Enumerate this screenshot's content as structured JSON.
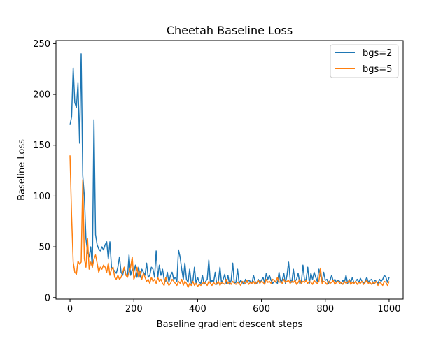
{
  "chart_data": {
    "type": "line",
    "title": "Cheetah Baseline Loss",
    "xlabel": "Baseline gradient descent steps",
    "ylabel": "Baseline Loss",
    "xlim": [
      -44,
      1044
    ],
    "ylim": [
      -1.5,
      253
    ],
    "xticks": [
      0,
      200,
      400,
      600,
      800,
      1000
    ],
    "yticks": [
      0,
      50,
      100,
      150,
      200,
      250
    ],
    "legend_position": "top-right",
    "grid": false,
    "series": [
      {
        "name": "bgs=2",
        "color": "#1f77b4",
        "x": [
          0,
          5,
          10,
          15,
          20,
          25,
          30,
          35,
          40,
          45,
          50,
          55,
          60,
          65,
          70,
          75,
          80,
          85,
          90,
          95,
          100,
          105,
          110,
          115,
          120,
          125,
          130,
          135,
          140,
          145,
          150,
          155,
          160,
          165,
          170,
          175,
          180,
          185,
          190,
          195,
          200,
          205,
          210,
          215,
          220,
          225,
          230,
          235,
          240,
          245,
          250,
          255,
          260,
          265,
          270,
          275,
          280,
          285,
          290,
          295,
          300,
          305,
          310,
          315,
          320,
          325,
          330,
          335,
          340,
          345,
          350,
          355,
          360,
          365,
          370,
          375,
          380,
          385,
          390,
          395,
          400,
          405,
          410,
          415,
          420,
          425,
          430,
          435,
          440,
          445,
          450,
          455,
          460,
          465,
          470,
          475,
          480,
          485,
          490,
          495,
          500,
          505,
          510,
          515,
          520,
          525,
          530,
          535,
          540,
          545,
          550,
          555,
          560,
          565,
          570,
          575,
          580,
          585,
          590,
          595,
          600,
          605,
          610,
          615,
          620,
          625,
          630,
          635,
          640,
          645,
          650,
          655,
          660,
          665,
          670,
          675,
          680,
          685,
          690,
          695,
          700,
          705,
          710,
          715,
          720,
          725,
          730,
          735,
          740,
          745,
          750,
          755,
          760,
          765,
          770,
          775,
          780,
          785,
          790,
          795,
          800,
          805,
          810,
          815,
          820,
          825,
          830,
          835,
          840,
          845,
          850,
          855,
          860,
          865,
          870,
          875,
          880,
          885,
          890,
          895,
          900,
          905,
          910,
          915,
          920,
          925,
          930,
          935,
          940,
          945,
          950,
          955,
          960,
          965,
          970,
          975,
          980,
          985,
          990,
          995,
          1000
        ],
        "y": [
          170,
          178,
          226,
          192,
          187,
          211,
          152,
          240,
          120,
          100,
          58,
          45,
          40,
          50,
          30,
          175,
          62,
          52,
          48,
          46,
          50,
          47,
          52,
          55,
          38,
          55,
          30,
          28,
          26,
          24,
          30,
          40,
          25,
          22,
          30,
          23,
          20,
          42,
          22,
          28,
          25,
          32,
          20,
          30,
          20,
          28,
          25,
          22,
          34,
          20,
          22,
          30,
          28,
          20,
          46,
          20,
          32,
          22,
          28,
          18,
          16,
          25,
          15,
          22,
          25,
          18,
          20,
          16,
          47,
          40,
          28,
          18,
          34,
          18,
          15,
          28,
          14,
          16,
          30,
          14,
          20,
          15,
          14,
          22,
          13,
          16,
          18,
          37,
          14,
          17,
          15,
          25,
          13,
          16,
          30,
          14,
          18,
          23,
          14,
          22,
          13,
          17,
          34,
          14,
          15,
          28,
          14,
          17,
          15,
          13,
          18,
          15,
          17,
          16,
          14,
          22,
          16,
          14,
          18,
          15,
          17,
          20,
          14,
          24,
          18,
          22,
          17,
          14,
          16,
          16,
          14,
          25,
          15,
          17,
          24,
          14,
          22,
          35,
          18,
          15,
          28,
          16,
          18,
          24,
          14,
          15,
          32,
          17,
          18,
          30,
          14,
          24,
          18,
          25,
          20,
          16,
          28,
          22,
          15,
          25,
          17,
          18,
          14,
          17,
          22,
          16,
          18,
          15,
          17,
          16,
          14,
          17,
          15,
          22,
          14,
          18,
          15,
          20,
          14,
          16,
          18,
          15,
          19,
          16,
          14,
          16,
          20,
          15,
          17,
          18,
          14,
          17,
          16,
          14,
          18,
          16,
          18,
          22,
          20,
          15,
          20
        ]
      },
      {
        "name": "bgs=5",
        "color": "#ff7f0e",
        "x": [
          0,
          5,
          10,
          15,
          20,
          25,
          30,
          35,
          40,
          45,
          50,
          55,
          60,
          65,
          70,
          75,
          80,
          85,
          90,
          95,
          100,
          105,
          110,
          115,
          120,
          125,
          130,
          135,
          140,
          145,
          150,
          155,
          160,
          165,
          170,
          175,
          180,
          185,
          190,
          195,
          200,
          205,
          210,
          215,
          220,
          225,
          230,
          235,
          240,
          245,
          250,
          255,
          260,
          265,
          270,
          275,
          280,
          285,
          290,
          295,
          300,
          305,
          310,
          315,
          320,
          325,
          330,
          335,
          340,
          345,
          350,
          355,
          360,
          365,
          370,
          375,
          380,
          385,
          390,
          395,
          400,
          405,
          410,
          415,
          420,
          425,
          430,
          435,
          440,
          445,
          450,
          455,
          460,
          465,
          470,
          475,
          480,
          485,
          490,
          495,
          500,
          505,
          510,
          515,
          520,
          525,
          530,
          535,
          540,
          545,
          550,
          555,
          560,
          565,
          570,
          575,
          580,
          585,
          590,
          595,
          600,
          605,
          610,
          615,
          620,
          625,
          630,
          635,
          640,
          645,
          650,
          655,
          660,
          665,
          670,
          675,
          680,
          685,
          690,
          695,
          700,
          705,
          710,
          715,
          720,
          725,
          730,
          735,
          740,
          745,
          750,
          755,
          760,
          765,
          770,
          775,
          780,
          785,
          790,
          795,
          800,
          805,
          810,
          815,
          820,
          825,
          830,
          835,
          840,
          845,
          850,
          855,
          860,
          865,
          870,
          875,
          880,
          885,
          890,
          895,
          900,
          905,
          910,
          915,
          920,
          925,
          930,
          935,
          940,
          945,
          950,
          955,
          960,
          965,
          970,
          975,
          980,
          985,
          990,
          995,
          1000
        ],
        "y": [
          140,
          80,
          35,
          25,
          23,
          36,
          33,
          35,
          116,
          38,
          30,
          58,
          28,
          35,
          30,
          38,
          42,
          34,
          25,
          30,
          28,
          32,
          30,
          25,
          34,
          22,
          28,
          30,
          20,
          18,
          22,
          18,
          20,
          25,
          30,
          22,
          20,
          25,
          30,
          40,
          18,
          22,
          30,
          20,
          26,
          18,
          24,
          20,
          16,
          18,
          14,
          20,
          16,
          18,
          14,
          20,
          16,
          18,
          14,
          12,
          20,
          15,
          12,
          14,
          18,
          16,
          14,
          12,
          16,
          14,
          18,
          12,
          16,
          14,
          10,
          14,
          12,
          16,
          12,
          14,
          11,
          13,
          12,
          14,
          15,
          14,
          12,
          16,
          14,
          12,
          15,
          13,
          14,
          16,
          12,
          15,
          14,
          13,
          18,
          14,
          15,
          13,
          16,
          14,
          13,
          15,
          14,
          12,
          16,
          15,
          14,
          17,
          13,
          15,
          14,
          16,
          13,
          15,
          17,
          14,
          16,
          15,
          13,
          18,
          15,
          16,
          14,
          18,
          17,
          15,
          20,
          15,
          16,
          14,
          18,
          15,
          16,
          17,
          14,
          16,
          15,
          17,
          13,
          15,
          18,
          14,
          16,
          15,
          17,
          14,
          16,
          15,
          13,
          17,
          15,
          14,
          16,
          29,
          14,
          16,
          15,
          13,
          16,
          14,
          15,
          17,
          13,
          15,
          16,
          14,
          15,
          13,
          16,
          14,
          15,
          17,
          13,
          15,
          14,
          16,
          13,
          15,
          14,
          16,
          13,
          15,
          17,
          14,
          15,
          13,
          15,
          14,
          16,
          12,
          15,
          14,
          12,
          16,
          15,
          12,
          16
        ]
      }
    ]
  }
}
